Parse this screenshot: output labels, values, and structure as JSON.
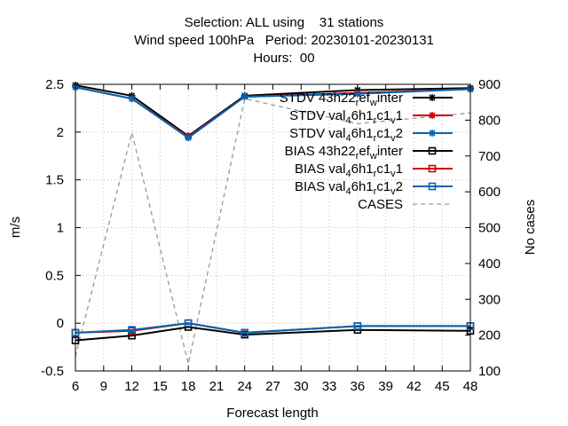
{
  "title_lines": [
    "Selection: ALL using    31 stations",
    "Wind speed 100hPa   Period: 20230101-20230131",
    "Hours:  00"
  ],
  "chart_data": {
    "type": "line",
    "xlabel": "Forecast length",
    "ylabel": "m/s",
    "y2label": "No cases",
    "xlim": [
      6,
      48
    ],
    "ylim": [
      -0.5,
      2.5
    ],
    "y2lim": [
      100,
      900
    ],
    "xticks": [
      "6",
      "9",
      "12",
      "15",
      "18",
      "21",
      "24",
      "27",
      "30",
      "33",
      "36",
      "39",
      "42",
      "45",
      "48"
    ],
    "yticks": [
      "-0.5",
      "0",
      "0.5",
      "1",
      "1.5",
      "2",
      "2.5"
    ],
    "y2ticks": [
      "100",
      "200",
      "300",
      "400",
      "500",
      "600",
      "700",
      "800",
      "900"
    ],
    "legend_position": "top-right",
    "x": [
      6,
      12,
      18,
      24,
      36,
      48
    ],
    "series": [
      {
        "name": "STDV 43h22_ref_winter",
        "legend": [
          "STDV 43h22",
          "r",
          "ef",
          "w",
          "inter"
        ],
        "axis": "y1",
        "color": "#000000",
        "marker": "star",
        "values": [
          2.49,
          2.38,
          1.96,
          2.38,
          2.44,
          2.46
        ]
      },
      {
        "name": "STDV val_46h1_rc1_v1",
        "legend": [
          "STDV val",
          "4",
          "6h1",
          "r",
          "c1",
          "v",
          "1"
        ],
        "axis": "y1",
        "color": "#cc0000",
        "marker": "star",
        "values": [
          2.47,
          2.35,
          1.95,
          2.37,
          2.41,
          2.45
        ]
      },
      {
        "name": "STDV val_46h1_rc1_v2",
        "legend": [
          "STDV val",
          "4",
          "6h1",
          "r",
          "c1",
          "v",
          "2"
        ],
        "axis": "y1",
        "color": "#0066b3",
        "marker": "star",
        "values": [
          2.47,
          2.35,
          1.94,
          2.37,
          2.4,
          2.45
        ]
      },
      {
        "name": "BIAS 43h22_ref_winter",
        "legend": [
          "BIAS 43h22",
          "r",
          "ef",
          "w",
          "inter"
        ],
        "axis": "y1",
        "color": "#000000",
        "marker": "square",
        "values": [
          -0.18,
          -0.13,
          -0.04,
          -0.12,
          -0.07,
          -0.08
        ]
      },
      {
        "name": "BIAS val_46h1_rc1_v1",
        "legend": [
          "BIAS val",
          "4",
          "6h1",
          "r",
          "c1",
          "v",
          "1"
        ],
        "axis": "y1",
        "color": "#cc0000",
        "marker": "square",
        "values": [
          -0.1,
          -0.08,
          0.0,
          -0.1,
          -0.03,
          -0.03
        ]
      },
      {
        "name": "BIAS val_46h1_rc1_v2",
        "legend": [
          "BIAS val",
          "4",
          "6h1",
          "r",
          "c1",
          "v",
          "2"
        ],
        "axis": "y1",
        "color": "#0066b3",
        "marker": "square",
        "values": [
          -0.1,
          -0.07,
          0.0,
          -0.1,
          -0.03,
          -0.03
        ]
      },
      {
        "name": "CASES",
        "legend": [
          "CASES"
        ],
        "axis": "y2",
        "color": "#999999",
        "marker": "none",
        "dashed": true,
        "values": [
          140,
          765,
          120,
          860,
          790,
          820
        ]
      }
    ]
  }
}
